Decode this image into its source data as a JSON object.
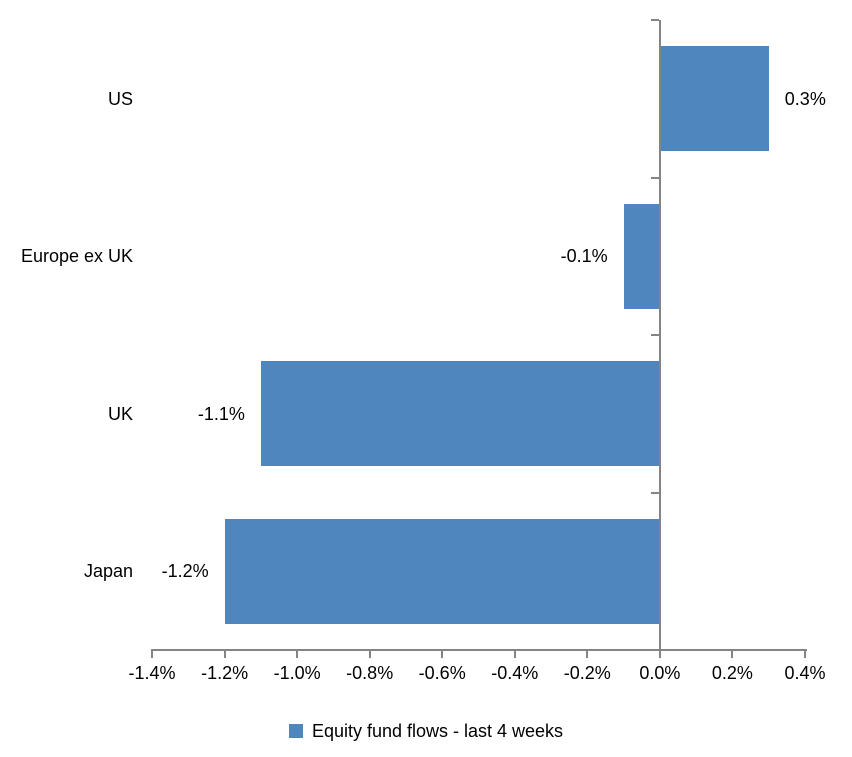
{
  "chart_data": {
    "type": "bar",
    "orientation": "horizontal",
    "title": "",
    "categories": [
      "US",
      "Europe ex UK",
      "UK",
      "Japan"
    ],
    "values": [
      0.3,
      -0.1,
      -1.1,
      -1.2
    ],
    "value_labels": [
      "0.3%",
      "-0.1%",
      "-1.1%",
      "-1.2%"
    ],
    "series": [
      {
        "name": "Equity fund flows - last 4 weeks",
        "values": [
          0.3,
          -0.1,
          -1.1,
          -1.2
        ]
      }
    ],
    "legend_label": "Equity fund flows - last 4 weeks",
    "legend_position": "bottom",
    "xlabel": "",
    "ylabel": "",
    "xlim": [
      -1.4,
      0.4
    ],
    "x_ticks": [
      -1.4,
      -1.2,
      -1.0,
      -0.8,
      -0.6,
      -0.4,
      -0.2,
      0.0,
      0.2,
      0.4
    ],
    "x_tick_labels": [
      "-1.4%",
      "-1.2%",
      "-1.0%",
      "-0.8%",
      "-0.6%",
      "-0.4%",
      "-0.2%",
      "0.0%",
      "0.2%",
      "0.4%"
    ],
    "grid": false,
    "bar_color": "#4E86BD",
    "axis_color": "#848484",
    "text_color": "#000000"
  }
}
